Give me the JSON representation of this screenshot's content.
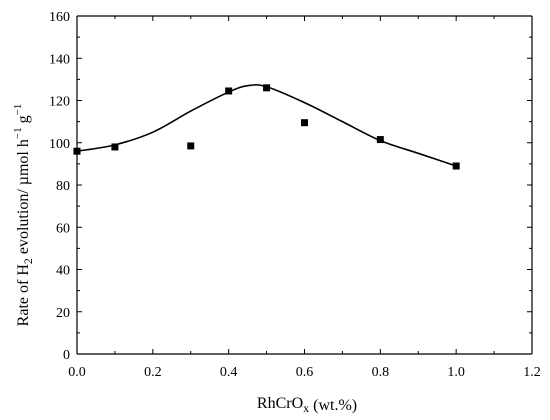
{
  "chart_data": {
    "type": "scatter",
    "xlabel": {
      "main": "RhCrO",
      "sub": "x",
      "suffix": " (wt.%)"
    },
    "ylabel": {
      "pre": "Rate of H",
      "sub": "2",
      "post": " evolution/ µmol h",
      "sup1": "−1",
      "mid": " g",
      "sup2": "−1"
    },
    "xlim": [
      0.0,
      1.2
    ],
    "ylim": [
      0,
      160
    ],
    "xticks": [
      0.0,
      0.2,
      0.4,
      0.6,
      0.8,
      1.0,
      1.2
    ],
    "xtick_labels": [
      "0.0",
      "0.2",
      "0.4",
      "0.6",
      "0.8",
      "1.0",
      "1.2"
    ],
    "yticks": [
      0,
      20,
      40,
      60,
      80,
      100,
      120,
      140,
      160
    ],
    "ytick_labels": [
      "0",
      "20",
      "40",
      "60",
      "80",
      "100",
      "120",
      "140",
      "160"
    ],
    "grid": false,
    "series": [
      {
        "marker": "square",
        "color": "#000000",
        "x": [
          0.0,
          0.1,
          0.3,
          0.4,
          0.5,
          0.6,
          0.8,
          1.0
        ],
        "y": [
          96,
          98,
          98.5,
          124.5,
          126,
          109.5,
          101.5,
          89
        ]
      }
    ],
    "fit_curve": {
      "style": "smooth",
      "color": "#000000",
      "x": [
        0.0,
        0.1,
        0.2,
        0.3,
        0.4,
        0.45,
        0.5,
        0.6,
        0.7,
        0.8,
        0.9,
        1.0
      ],
      "y": [
        96,
        99,
        105,
        115,
        124,
        127,
        126.5,
        119,
        110,
        101,
        95,
        89
      ]
    }
  }
}
